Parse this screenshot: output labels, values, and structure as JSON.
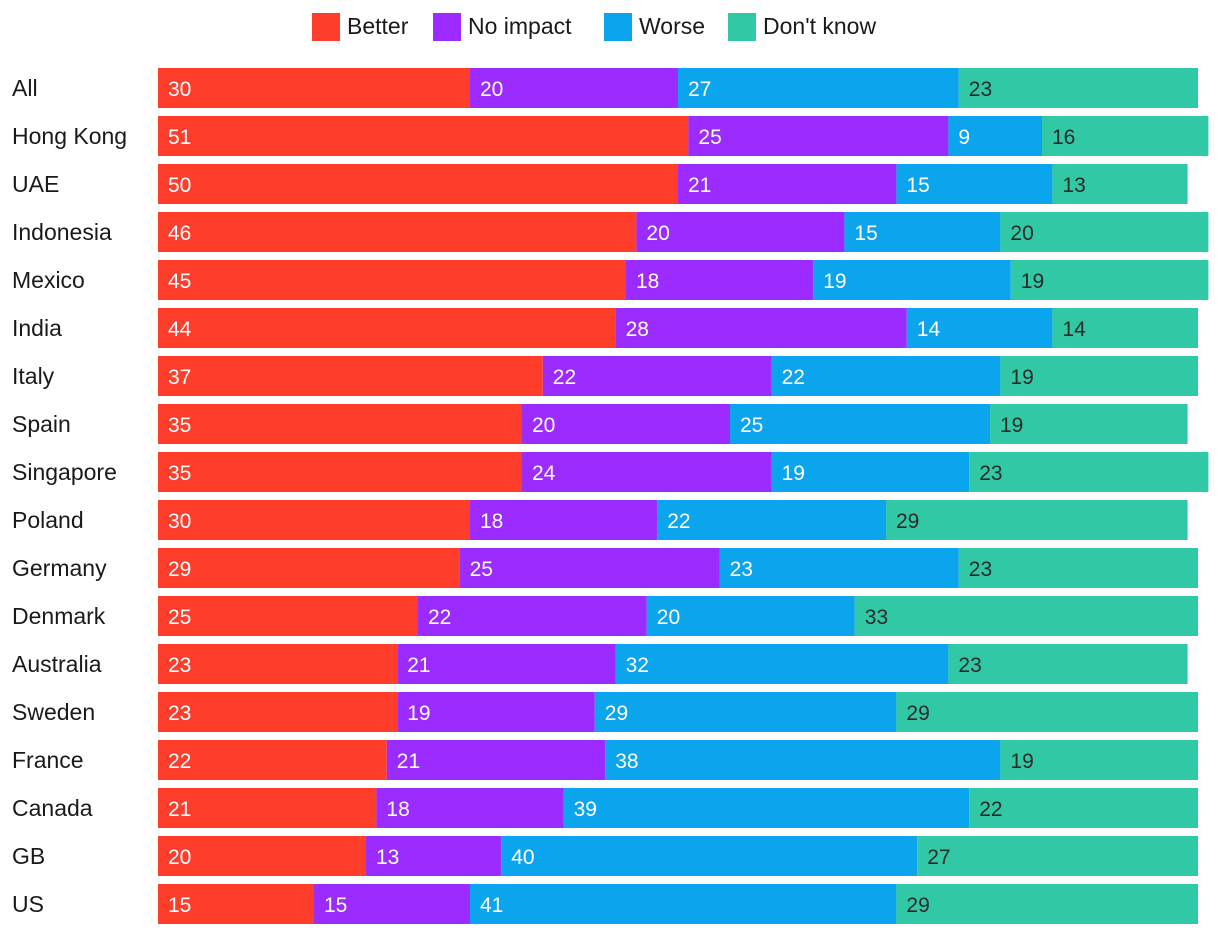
{
  "chart_data": {
    "type": "bar",
    "orientation": "horizontal",
    "stacked": true,
    "title": "",
    "xlabel": "",
    "ylabel": "",
    "legend_position": "top-center",
    "categories": [
      "All",
      "Hong Kong",
      "UAE",
      "Indonesia",
      "Mexico",
      "India",
      "Italy",
      "Spain",
      "Singapore",
      "Poland",
      "Germany",
      "Denmark",
      "Australia",
      "Sweden",
      "France",
      "Canada",
      "GB",
      "US"
    ],
    "series": [
      {
        "name": "Better",
        "color": "#ff3d2b",
        "text_color": "#ffffff",
        "values": [
          30,
          51,
          50,
          46,
          45,
          44,
          37,
          35,
          35,
          30,
          29,
          25,
          23,
          23,
          22,
          21,
          20,
          15
        ]
      },
      {
        "name": "No impact",
        "color": "#9b2bff",
        "text_color": "#ffffff",
        "values": [
          20,
          25,
          21,
          20,
          18,
          28,
          22,
          20,
          24,
          18,
          25,
          22,
          21,
          19,
          21,
          18,
          13,
          15
        ]
      },
      {
        "name": "Worse",
        "color": "#0aa5ed",
        "text_color": "#ffffff",
        "values": [
          27,
          9,
          15,
          15,
          19,
          14,
          22,
          25,
          19,
          22,
          23,
          20,
          32,
          29,
          38,
          39,
          40,
          41
        ]
      },
      {
        "name": "Don't know",
        "color": "#31c9a5",
        "text_color": "#2a2a2a",
        "values": [
          23,
          16,
          13,
          20,
          19,
          14,
          19,
          19,
          23,
          29,
          23,
          33,
          23,
          29,
          19,
          22,
          27,
          29
        ]
      }
    ]
  }
}
